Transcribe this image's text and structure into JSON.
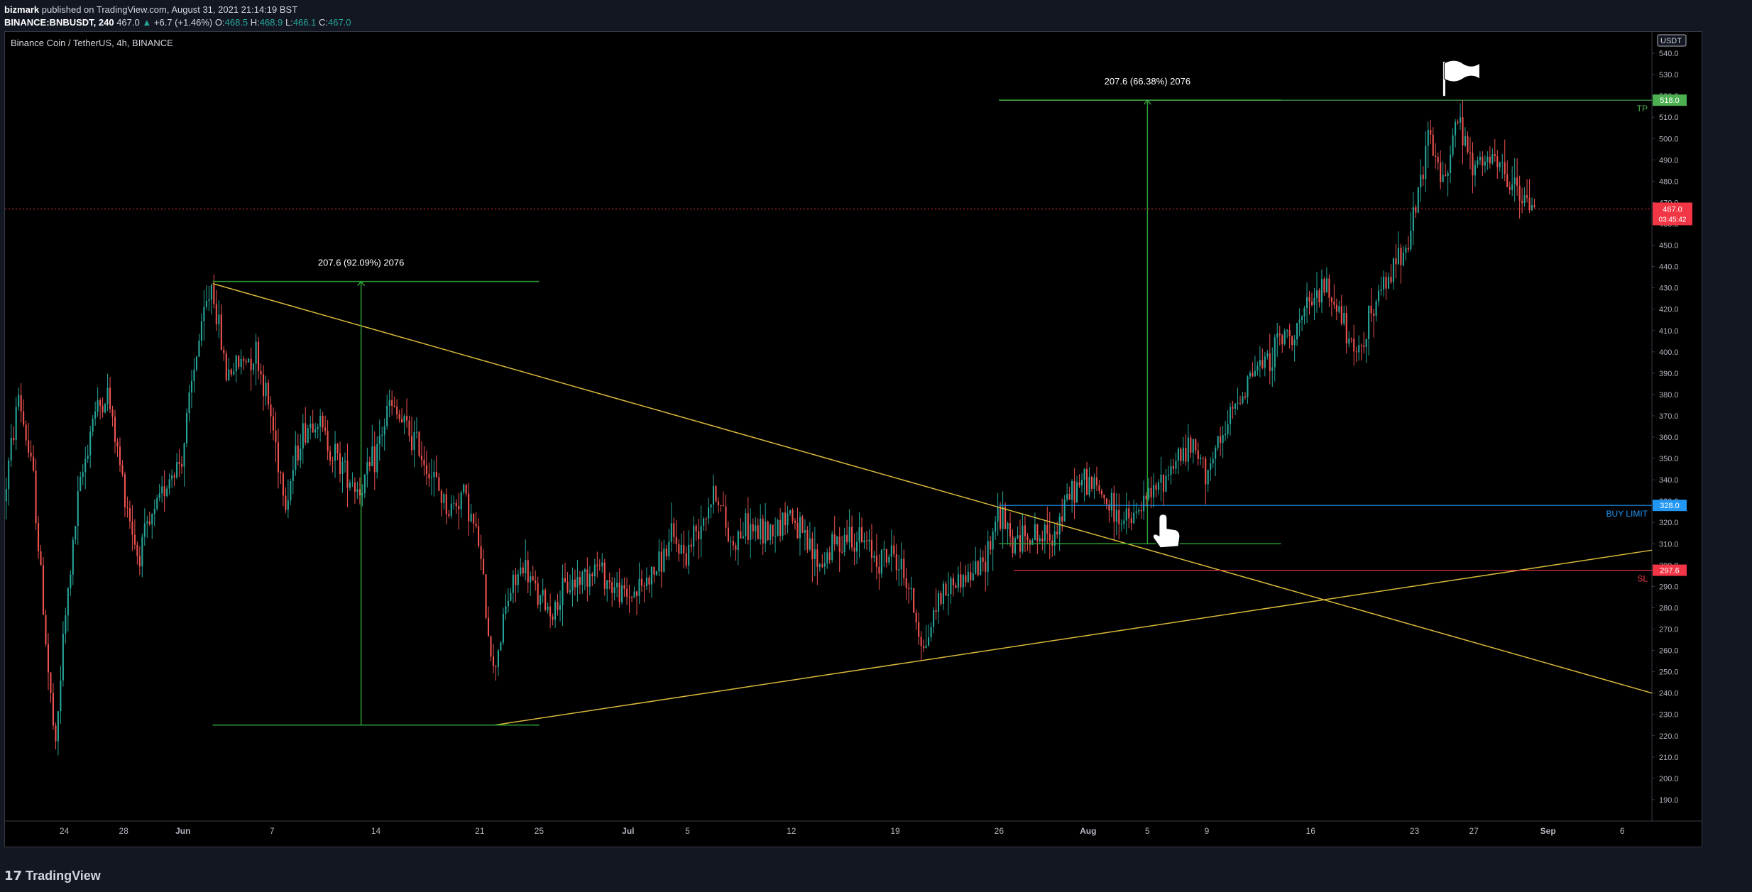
{
  "header": {
    "author": "bizmark",
    "published": "published on TradingView.com, August 31, 2021 21:14:19 BST",
    "symbol": "BINANCE:BNBUSDT, 240",
    "last": "467.0",
    "change": "+6.7 (+1.46%)",
    "o_label": "O:",
    "o": "468.5",
    "h_label": "H:",
    "h": "468.9",
    "l_label": "L:",
    "l": "466.1",
    "c_label": "C:",
    "c": "467.0"
  },
  "footer": {
    "logo": "TradingView"
  },
  "chart_data": {
    "type": "candlestick",
    "title": "Binance Coin / TetherUS, 4h, BINANCE",
    "currency": "USDT",
    "ylim": [
      180,
      550
    ],
    "y_ticks": [
      190,
      200,
      210,
      220,
      230,
      240,
      250,
      260,
      270,
      280,
      290,
      300,
      310,
      320,
      330,
      340,
      350,
      360,
      370,
      380,
      390,
      400,
      410,
      420,
      430,
      440,
      450,
      460,
      470,
      480,
      490,
      500,
      510,
      520,
      530,
      540
    ],
    "x_range": [
      "2021-05-20",
      "2021-09-08"
    ],
    "x_ticks": [
      {
        "date": "2021-05-24",
        "label": "24"
      },
      {
        "date": "2021-05-28",
        "label": "28"
      },
      {
        "date": "2021-06-01",
        "label": "Jun"
      },
      {
        "date": "2021-06-07",
        "label": "7"
      },
      {
        "date": "2021-06-14",
        "label": "14"
      },
      {
        "date": "2021-06-21",
        "label": "21"
      },
      {
        "date": "2021-06-25",
        "label": "25"
      },
      {
        "date": "2021-07-01",
        "label": "Jul"
      },
      {
        "date": "2021-07-05",
        "label": "5"
      },
      {
        "date": "2021-07-12",
        "label": "12"
      },
      {
        "date": "2021-07-19",
        "label": "19"
      },
      {
        "date": "2021-07-26",
        "label": "26"
      },
      {
        "date": "2021-08-01",
        "label": "Aug"
      },
      {
        "date": "2021-08-05",
        "label": "5"
      },
      {
        "date": "2021-08-09",
        "label": "9"
      },
      {
        "date": "2021-08-16",
        "label": "16"
      },
      {
        "date": "2021-08-23",
        "label": "23"
      },
      {
        "date": "2021-08-27",
        "label": "27"
      },
      {
        "date": "2021-09-01",
        "label": "Sep"
      },
      {
        "date": "2021-09-06",
        "label": "6"
      }
    ],
    "price_path": [
      [
        "2021-05-20",
        330
      ],
      [
        "2021-05-21",
        380
      ],
      [
        "2021-05-22",
        340
      ],
      [
        "2021-05-23",
        250
      ],
      [
        "2021-05-23T12",
        212
      ],
      [
        "2021-05-24",
        265
      ],
      [
        "2021-05-25",
        330
      ],
      [
        "2021-05-26",
        370
      ],
      [
        "2021-05-27",
        380
      ],
      [
        "2021-05-28",
        340
      ],
      [
        "2021-05-29",
        305
      ],
      [
        "2021-05-30",
        320
      ],
      [
        "2021-05-31",
        340
      ],
      [
        "2021-06-01",
        350
      ],
      [
        "2021-06-02",
        400
      ],
      [
        "2021-06-03",
        432
      ],
      [
        "2021-06-04",
        390
      ],
      [
        "2021-06-05",
        395
      ],
      [
        "2021-06-06",
        400
      ],
      [
        "2021-06-07",
        370
      ],
      [
        "2021-06-08",
        330
      ],
      [
        "2021-06-09",
        360
      ],
      [
        "2021-06-10",
        370
      ],
      [
        "2021-06-11",
        355
      ],
      [
        "2021-06-12",
        345
      ],
      [
        "2021-06-13",
        335
      ],
      [
        "2021-06-14",
        350
      ],
      [
        "2021-06-15",
        375
      ],
      [
        "2021-06-16",
        365
      ],
      [
        "2021-06-17",
        355
      ],
      [
        "2021-06-18",
        340
      ],
      [
        "2021-06-19",
        325
      ],
      [
        "2021-06-20",
        335
      ],
      [
        "2021-06-21",
        310
      ],
      [
        "2021-06-22",
        250
      ],
      [
        "2021-06-23",
        285
      ],
      [
        "2021-06-24",
        300
      ],
      [
        "2021-06-25",
        285
      ],
      [
        "2021-06-26",
        278
      ],
      [
        "2021-06-27",
        290
      ],
      [
        "2021-06-28",
        295
      ],
      [
        "2021-06-29",
        300
      ],
      [
        "2021-06-30",
        290
      ],
      [
        "2021-07-01",
        285
      ],
      [
        "2021-07-02",
        290
      ],
      [
        "2021-07-03",
        298
      ],
      [
        "2021-07-04",
        312
      ],
      [
        "2021-07-05",
        305
      ],
      [
        "2021-07-06",
        322
      ],
      [
        "2021-07-07",
        335
      ],
      [
        "2021-07-08",
        310
      ],
      [
        "2021-07-09",
        318
      ],
      [
        "2021-07-10",
        315
      ],
      [
        "2021-07-11",
        318
      ],
      [
        "2021-07-12",
        325
      ],
      [
        "2021-07-13",
        310
      ],
      [
        "2021-07-14",
        300
      ],
      [
        "2021-07-15",
        310
      ],
      [
        "2021-07-16",
        315
      ],
      [
        "2021-07-17",
        310
      ],
      [
        "2021-07-18",
        303
      ],
      [
        "2021-07-19",
        305
      ],
      [
        "2021-07-20",
        290
      ],
      [
        "2021-07-21",
        260
      ],
      [
        "2021-07-22",
        285
      ],
      [
        "2021-07-23",
        292
      ],
      [
        "2021-07-24",
        295
      ],
      [
        "2021-07-25",
        300
      ],
      [
        "2021-07-26",
        325
      ],
      [
        "2021-07-27",
        310
      ],
      [
        "2021-07-28",
        315
      ],
      [
        "2021-07-29",
        312
      ],
      [
        "2021-07-30",
        318
      ],
      [
        "2021-07-31",
        335
      ],
      [
        "2021-08-01",
        340
      ],
      [
        "2021-08-02",
        333
      ],
      [
        "2021-08-03",
        323
      ],
      [
        "2021-08-04",
        320
      ],
      [
        "2021-08-05",
        330
      ],
      [
        "2021-08-06",
        338
      ],
      [
        "2021-08-07",
        350
      ],
      [
        "2021-08-08",
        355
      ],
      [
        "2021-08-09",
        345
      ],
      [
        "2021-08-10",
        355
      ],
      [
        "2021-08-11",
        375
      ],
      [
        "2021-08-12",
        390
      ],
      [
        "2021-08-13",
        395
      ],
      [
        "2021-08-14",
        405
      ],
      [
        "2021-08-15",
        410
      ],
      [
        "2021-08-16",
        420
      ],
      [
        "2021-08-17",
        430
      ],
      [
        "2021-08-18",
        420
      ],
      [
        "2021-08-19",
        395
      ],
      [
        "2021-08-20",
        415
      ],
      [
        "2021-08-21",
        430
      ],
      [
        "2021-08-22",
        445
      ],
      [
        "2021-08-23",
        460
      ],
      [
        "2021-08-24",
        500
      ],
      [
        "2021-08-25",
        480
      ],
      [
        "2021-08-26",
        510
      ],
      [
        "2021-08-27",
        485
      ],
      [
        "2021-08-28",
        490
      ],
      [
        "2021-08-29",
        485
      ],
      [
        "2021-08-30",
        475
      ],
      [
        "2021-08-31",
        467
      ]
    ],
    "current_price": {
      "label": "467.0",
      "countdown": "03:45:42"
    },
    "drawings": {
      "triangle_upper": {
        "from": [
          "2021-06-03",
          432
        ],
        "to": [
          "2021-09-08",
          240
        ]
      },
      "triangle_lower": {
        "from": [
          "2021-06-22",
          225
        ],
        "to": [
          "2021-09-08",
          307
        ]
      },
      "measure1": {
        "label": "207.6 (92.09%) 2076",
        "x": "2021-06-13",
        "from": 225,
        "to": 433,
        "x_start": "2021-06-03",
        "x_end": "2021-06-25"
      },
      "measure2": {
        "label": "207.6 (66.38%) 2076",
        "x": "2021-08-05",
        "from": 310,
        "to": 518,
        "x_start": "2021-07-26",
        "x_end": "2021-08-14"
      },
      "tp": {
        "price": 518.0,
        "label": "TP",
        "tag": "518.0",
        "from": "2021-07-26"
      },
      "buy_limit": {
        "price": 328.0,
        "label": "BUY LIMIT",
        "tag": "328.0",
        "from": "2021-07-26"
      },
      "sl": {
        "price": 297.6,
        "label": "SL",
        "tag": "297.6",
        "from": "2021-07-27"
      }
    },
    "colors": {
      "up": "#26a69a",
      "down": "#ef5350",
      "trend": "#d8b93a",
      "measure": "#2e9e34",
      "tp": "#4caf50",
      "buy": "#2196f3",
      "sl": "#f23645",
      "current": "#f23645"
    }
  }
}
